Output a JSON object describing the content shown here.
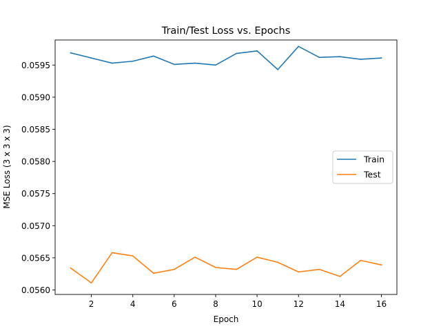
{
  "chart_data": {
    "type": "line",
    "title": "Train/Test Loss vs. Epochs",
    "xlabel": "Epoch",
    "ylabel": "MSE Loss (3 x 3 x 3)",
    "xlim": [
      0.25,
      16.75
    ],
    "ylim": [
      0.05593,
      0.05989
    ],
    "xticks": [
      2,
      4,
      6,
      8,
      10,
      12,
      14,
      16
    ],
    "xtick_labels": [
      "2",
      "4",
      "6",
      "8",
      "10",
      "12",
      "14",
      "16"
    ],
    "yticks": [
      0.056,
      0.0565,
      0.057,
      0.0575,
      0.058,
      0.0585,
      0.059,
      0.0595
    ],
    "ytick_labels": [
      "0.0560",
      "0.0565",
      "0.0570",
      "0.0575",
      "0.0580",
      "0.0585",
      "0.0590",
      "0.0595"
    ],
    "grid": false,
    "legend_position": "center-right",
    "x": [
      1,
      2,
      3,
      4,
      5,
      6,
      7,
      8,
      9,
      10,
      11,
      12,
      13,
      14,
      15,
      16
    ],
    "series": [
      {
        "name": "Train",
        "color": "#1f77b4",
        "values": [
          0.05969,
          0.05961,
          0.05953,
          0.05956,
          0.05964,
          0.05951,
          0.05953,
          0.0595,
          0.05968,
          0.05972,
          0.05943,
          0.05979,
          0.05962,
          0.05963,
          0.05959,
          0.05961
        ]
      },
      {
        "name": "Test",
        "color": "#ff7f0e",
        "values": [
          0.05634,
          0.05611,
          0.05658,
          0.05653,
          0.05626,
          0.05632,
          0.05651,
          0.05635,
          0.05632,
          0.05651,
          0.05643,
          0.05628,
          0.05632,
          0.05621,
          0.05646,
          0.05639
        ]
      }
    ]
  }
}
